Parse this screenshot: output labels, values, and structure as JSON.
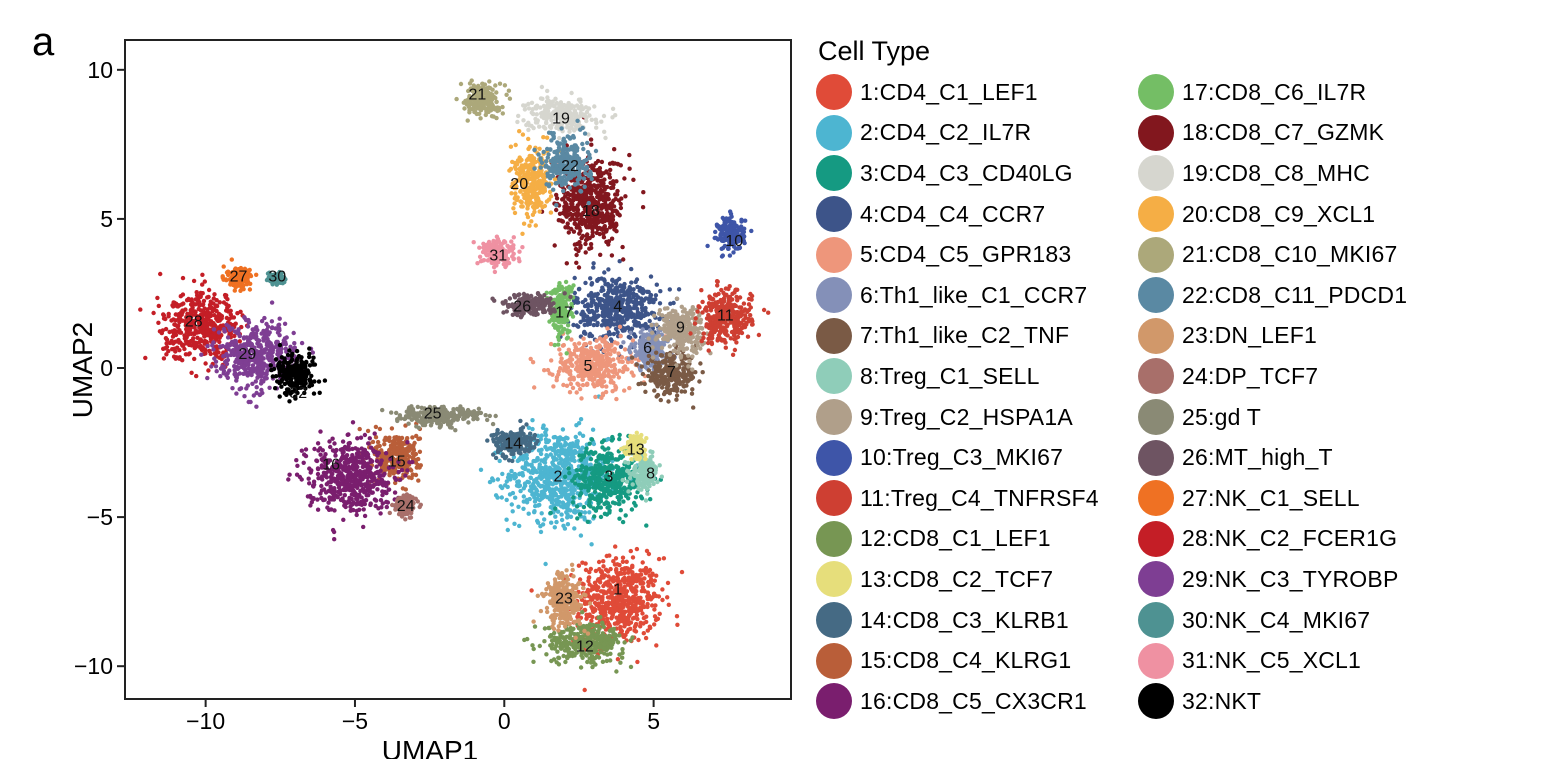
{
  "panel_label": "a",
  "chart_data": {
    "type": "scatter",
    "title": "",
    "xlabel": "UMAP1",
    "ylabel": "UMAP2",
    "xlim": [
      -12.7,
      9.6
    ],
    "ylim": [
      -11.1,
      11.0
    ],
    "xticks": [
      -10,
      -5,
      0,
      5
    ],
    "xtick_labels": [
      "−10",
      "−5",
      "0",
      "5"
    ],
    "yticks": [
      -10,
      -5,
      0,
      5,
      10
    ],
    "ytick_labels": [
      "−10",
      "−5",
      "0",
      "5",
      "10"
    ],
    "grid": false,
    "legend_position": "right",
    "legend_title": "Cell Type",
    "series": [
      {
        "id": "1",
        "name": "1:CD4_C1_LEF1",
        "color": "#E04B38",
        "center": [
          3.8,
          -7.8
        ],
        "spread": [
          1.3,
          1.3
        ]
      },
      {
        "id": "2",
        "name": "2:CD4_C2_IL7R",
        "color": "#4DB5D1",
        "center": [
          1.8,
          -3.6
        ],
        "spread": [
          1.5,
          1.4
        ]
      },
      {
        "id": "3",
        "name": "3:CD4_C3_CD40LG",
        "color": "#159A82",
        "center": [
          3.5,
          -3.7
        ],
        "spread": [
          1.1,
          1.0
        ]
      },
      {
        "id": "4",
        "name": "4:CD4_C4_CCR7",
        "color": "#3D5489",
        "center": [
          3.8,
          2.0
        ],
        "spread": [
          1.3,
          1.0
        ]
      },
      {
        "id": "5",
        "name": "5:CD4_C5_GPR183",
        "color": "#EE967B",
        "center": [
          3.0,
          0.1
        ],
        "spread": [
          1.2,
          0.8
        ]
      },
      {
        "id": "6",
        "name": "6:Th1_like_C1_CCR7",
        "color": "#8490B8",
        "center": [
          4.9,
          0.6
        ],
        "spread": [
          0.6,
          0.6
        ]
      },
      {
        "id": "7",
        "name": "7:Th1_like_C2_TNF",
        "color": "#7A5A45",
        "center": [
          5.6,
          -0.2
        ],
        "spread": [
          0.8,
          0.6
        ]
      },
      {
        "id": "8",
        "name": "8:Treg_C1_SELL",
        "color": "#8FCDB9",
        "center": [
          4.7,
          -3.5
        ],
        "spread": [
          0.4,
          0.5
        ]
      },
      {
        "id": "9",
        "name": "9:Treg_C2_HSPA1A",
        "color": "#B09F8A",
        "center": [
          5.9,
          1.3
        ],
        "spread": [
          0.7,
          0.7
        ]
      },
      {
        "id": "10",
        "name": "10:Treg_C3_MKI67",
        "color": "#3E55A8",
        "center": [
          7.6,
          4.5
        ],
        "spread": [
          0.4,
          0.5
        ]
      },
      {
        "id": "11",
        "name": "11:Treg_C4_TNFRSF4",
        "color": "#CE3F32",
        "center": [
          7.4,
          1.7
        ],
        "spread": [
          0.8,
          0.8
        ]
      },
      {
        "id": "12",
        "name": "12:CD8_C1_LEF1",
        "color": "#779653",
        "center": [
          2.7,
          -9.2
        ],
        "spread": [
          1.2,
          0.6
        ]
      },
      {
        "id": "13",
        "name": "13:CD8_C2_TCF7",
        "color": "#E6DE7B",
        "center": [
          4.4,
          -2.6
        ],
        "spread": [
          0.3,
          0.3
        ]
      },
      {
        "id": "14",
        "name": "14:CD8_C3_KLRB1",
        "color": "#456A84",
        "center": [
          0.3,
          -2.5
        ],
        "spread": [
          0.6,
          0.4
        ]
      },
      {
        "id": "15",
        "name": "15:CD8_C4_KLRG1",
        "color": "#B95E39",
        "center": [
          -3.6,
          -3.0
        ],
        "spread": [
          0.7,
          0.8
        ]
      },
      {
        "id": "16",
        "name": "16:CD8_C5_CX3CR1",
        "color": "#7A1E6E",
        "center": [
          -5.2,
          -3.6
        ],
        "spread": [
          1.3,
          1.1
        ]
      },
      {
        "id": "17",
        "name": "17:CD8_C6_IL7R",
        "color": "#74BE65",
        "center": [
          1.9,
          2.0
        ],
        "spread": [
          0.35,
          0.8
        ]
      },
      {
        "id": "18",
        "name": "18:CD8_C7_GZMK",
        "color": "#82171E",
        "center": [
          2.9,
          5.5
        ],
        "spread": [
          1.0,
          1.4
        ]
      },
      {
        "id": "19",
        "name": "19:CD8_C8_MHC",
        "color": "#D6D6CF",
        "center": [
          1.9,
          8.5
        ],
        "spread": [
          1.0,
          0.5
        ]
      },
      {
        "id": "20",
        "name": "20:CD8_C9_XCL1",
        "color": "#F5AE45",
        "center": [
          0.9,
          6.2
        ],
        "spread": [
          0.6,
          1.0
        ]
      },
      {
        "id": "21",
        "name": "21:CD8_C10_MKI67",
        "color": "#ACA87A",
        "center": [
          -0.7,
          9.0
        ],
        "spread": [
          0.5,
          0.5
        ]
      },
      {
        "id": "22",
        "name": "22:CD8_C11_PDCD1",
        "color": "#5A89A3",
        "center": [
          2.1,
          6.9
        ],
        "spread": [
          0.7,
          0.8
        ]
      },
      {
        "id": "23",
        "name": "23:DN_LEF1",
        "color": "#D1986A",
        "center": [
          2.0,
          -7.8
        ],
        "spread": [
          0.6,
          0.8
        ]
      },
      {
        "id": "24",
        "name": "24:DP_TCF7",
        "color": "#A86F6A",
        "center": [
          -3.3,
          -4.6
        ],
        "spread": [
          0.3,
          0.3
        ]
      },
      {
        "id": "25",
        "name": "25:gd T",
        "color": "#8A8A75",
        "center": [
          -2.2,
          -1.6
        ],
        "spread": [
          1.3,
          0.3
        ]
      },
      {
        "id": "26",
        "name": "26:MT_high_T",
        "color": "#6E5462",
        "center": [
          0.8,
          2.1
        ],
        "spread": [
          0.8,
          0.3
        ]
      },
      {
        "id": "27",
        "name": "27:NK_C1_SELL",
        "color": "#EF7123",
        "center": [
          -8.9,
          3.0
        ],
        "spread": [
          0.35,
          0.3
        ]
      },
      {
        "id": "28",
        "name": "28:NK_C2_FCER1G",
        "color": "#C41E26",
        "center": [
          -10.1,
          1.4
        ],
        "spread": [
          1.2,
          1.0
        ]
      },
      {
        "id": "29",
        "name": "29:NK_C3_TYROBP",
        "color": "#7E3E93",
        "center": [
          -8.3,
          0.4
        ],
        "spread": [
          1.2,
          1.0
        ]
      },
      {
        "id": "30",
        "name": "30:NK_C4_MKI67",
        "color": "#4E9292",
        "center": [
          -7.6,
          3.0
        ],
        "spread": [
          0.2,
          0.15
        ]
      },
      {
        "id": "31",
        "name": "31:NK_C5_XCL1",
        "color": "#EF91A2",
        "center": [
          -0.2,
          3.9
        ],
        "spread": [
          0.5,
          0.4
        ]
      },
      {
        "id": "32",
        "name": "32:NKT",
        "color": "#000000",
        "center": [
          -7.0,
          -0.2
        ],
        "spread": [
          0.6,
          0.6
        ]
      }
    ],
    "cluster_labels": [
      {
        "text": "1",
        "x": 3.8,
        "y": -7.4
      },
      {
        "text": "2",
        "x": 1.8,
        "y": -3.6
      },
      {
        "text": "3",
        "x": 3.5,
        "y": -3.6
      },
      {
        "text": "4",
        "x": 3.8,
        "y": 2.1
      },
      {
        "text": "5",
        "x": 2.8,
        "y": 0.1
      },
      {
        "text": "6",
        "x": 4.8,
        "y": 0.7
      },
      {
        "text": "7",
        "x": 5.6,
        "y": -0.1
      },
      {
        "text": "8",
        "x": 4.9,
        "y": -3.5
      },
      {
        "text": "9",
        "x": 5.9,
        "y": 1.4
      },
      {
        "text": "10",
        "x": 7.7,
        "y": 4.3
      },
      {
        "text": "11",
        "x": 7.4,
        "y": 1.8
      },
      {
        "text": "12",
        "x": 2.7,
        "y": -9.3
      },
      {
        "text": "13",
        "x": 4.4,
        "y": -2.7
      },
      {
        "text": "14",
        "x": 0.3,
        "y": -2.5
      },
      {
        "text": "15",
        "x": -3.6,
        "y": -3.1
      },
      {
        "text": "16",
        "x": -5.8,
        "y": -3.2
      },
      {
        "text": "17",
        "x": 2.0,
        "y": 1.9
      },
      {
        "text": "18",
        "x": 2.9,
        "y": 5.3
      },
      {
        "text": "19",
        "x": 1.9,
        "y": 8.4
      },
      {
        "text": "20",
        "x": 0.5,
        "y": 6.2
      },
      {
        "text": "21",
        "x": -0.9,
        "y": 9.2
      },
      {
        "text": "22",
        "x": 2.2,
        "y": 6.8
      },
      {
        "text": "23",
        "x": 2.0,
        "y": -7.7
      },
      {
        "text": "24",
        "x": -3.3,
        "y": -4.6
      },
      {
        "text": "25",
        "x": -2.4,
        "y": -1.5
      },
      {
        "text": "26",
        "x": 0.6,
        "y": 2.1
      },
      {
        "text": "27",
        "x": -8.9,
        "y": 3.1
      },
      {
        "text": "28",
        "x": -10.4,
        "y": 1.6
      },
      {
        "text": "29",
        "x": -8.6,
        "y": 0.5
      },
      {
        "text": "30",
        "x": -7.6,
        "y": 3.1
      },
      {
        "text": "31",
        "x": -0.2,
        "y": 3.8
      },
      {
        "text": "32",
        "x": -6.9,
        "y": -0.8
      }
    ]
  }
}
